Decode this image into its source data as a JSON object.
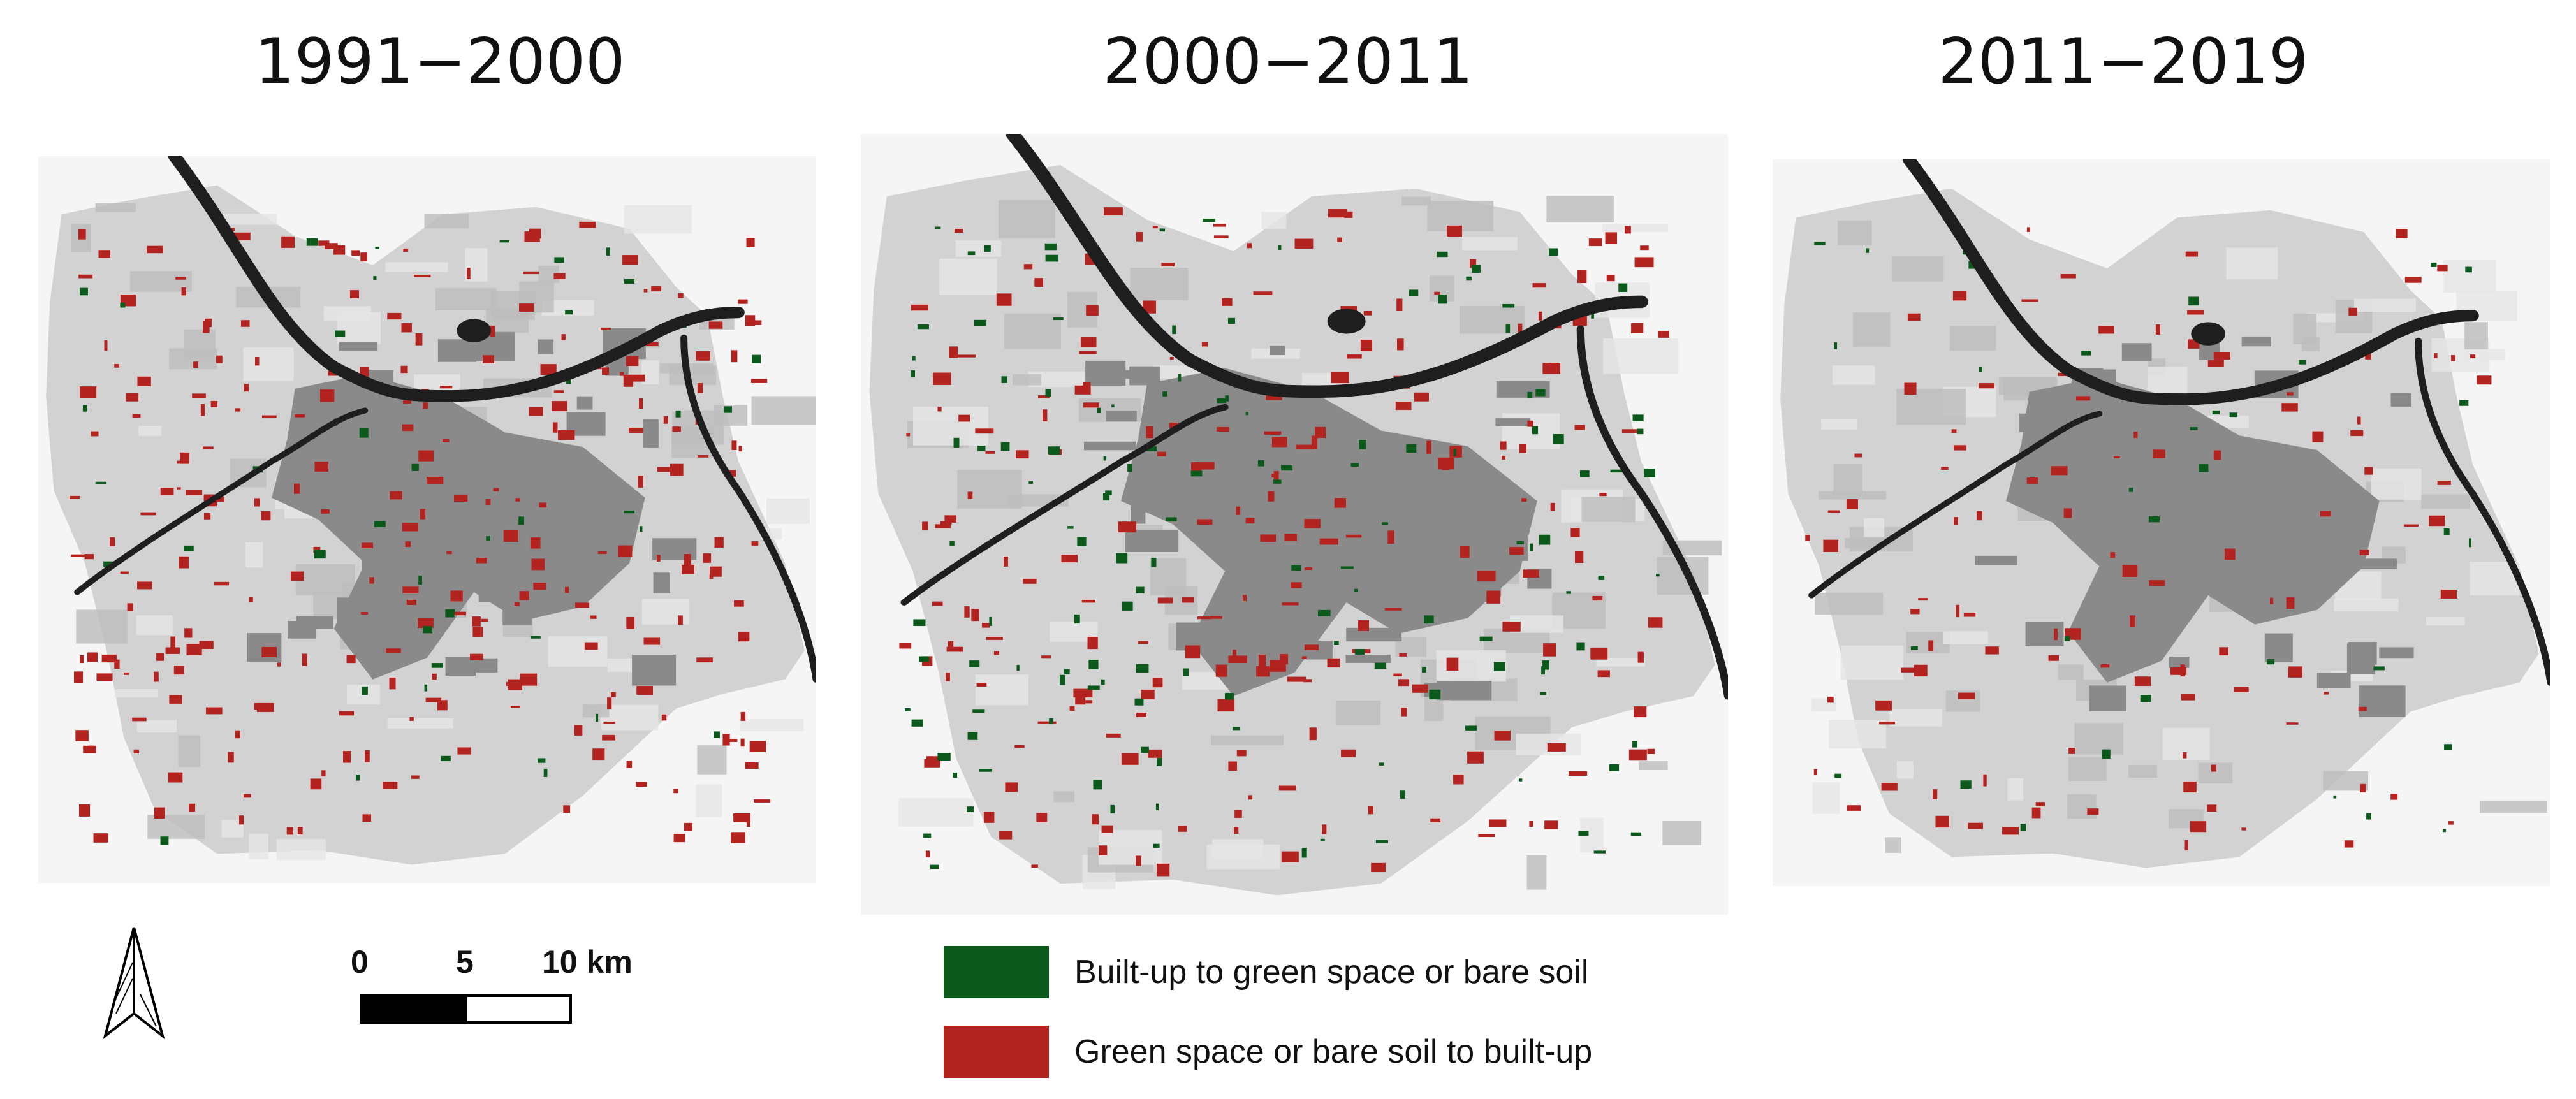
{
  "panels": [
    {
      "title": "1991−2000"
    },
    {
      "title": "2000−2011"
    },
    {
      "title": "2011−2019"
    }
  ],
  "scale": {
    "ticks": [
      "0",
      "5",
      "10 km"
    ]
  },
  "legend": [
    {
      "label": "Built-up to green space or bare soil",
      "color": "#0b5a1c"
    },
    {
      "label": "Green space or bare soil to built-up",
      "color": "#b3231f"
    }
  ],
  "colors": {
    "river": "#1e1e1e",
    "urban_core": "#8a8a8a",
    "land": "#d2d2d2",
    "background": "#f5f5f5"
  },
  "icons": [
    "north-arrow-icon"
  ]
}
